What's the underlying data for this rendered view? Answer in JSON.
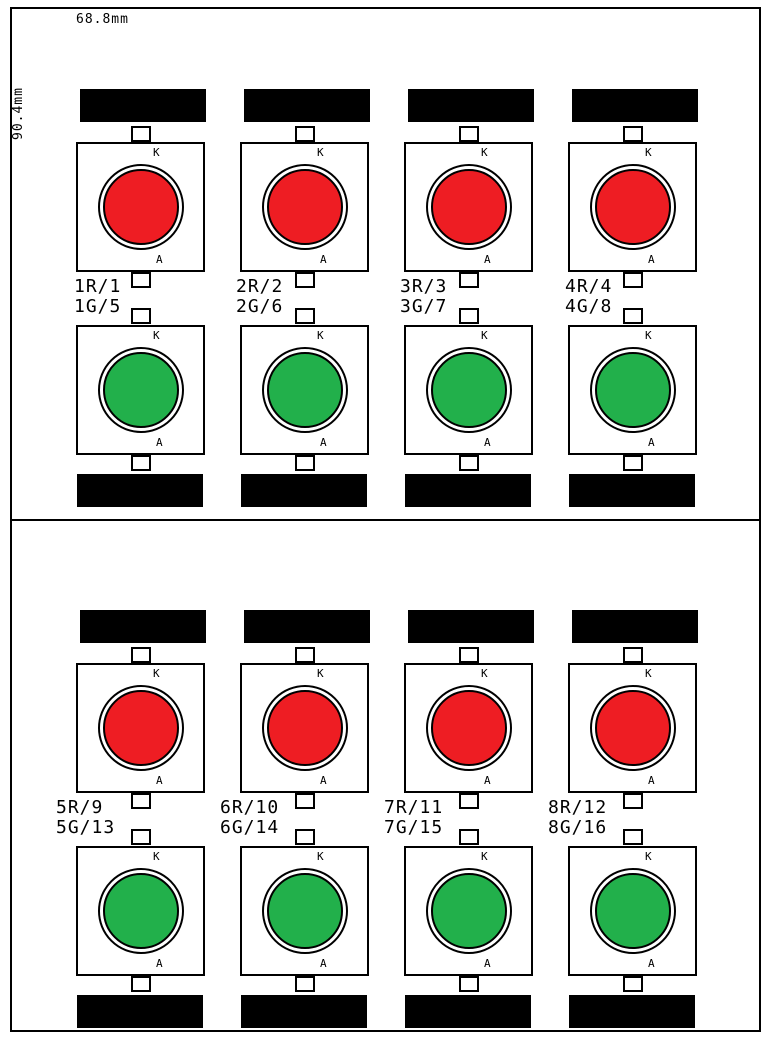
{
  "dimensions": {
    "width": "68.8mm",
    "height": "90.4mm"
  },
  "colors": {
    "red": "#ee1d23",
    "green": "#22b04b",
    "outline": "#000000"
  },
  "pin_labels": {
    "cathode": "K",
    "anode": "A"
  },
  "panels": [
    {
      "leds": [
        {
          "red_label": "1R/1",
          "green_label": "1G/5"
        },
        {
          "red_label": "2R/2",
          "green_label": "2G/6"
        },
        {
          "red_label": "3R/3",
          "green_label": "3G/7"
        },
        {
          "red_label": "4R/4",
          "green_label": "4G/8"
        }
      ]
    },
    {
      "leds": [
        {
          "red_label": "5R/9",
          "green_label": "5G/13"
        },
        {
          "red_label": "6R/10",
          "green_label": "6G/14"
        },
        {
          "red_label": "7R/11",
          "green_label": "7G/15"
        },
        {
          "red_label": "8R/12",
          "green_label": "8G/16"
        }
      ]
    }
  ]
}
